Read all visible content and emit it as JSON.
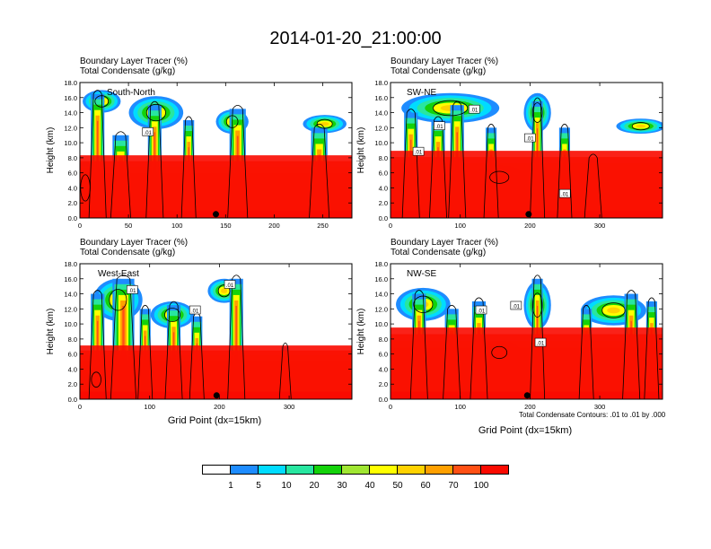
{
  "title": "2014-01-20_21:00:00",
  "colorbar": {
    "colors": [
      "#ffffff",
      "#1e8cff",
      "#00dcff",
      "#28e6a0",
      "#14d20a",
      "#a0e632",
      "#ffff00",
      "#ffd200",
      "#ffa000",
      "#ff5014",
      "#fa0a00"
    ],
    "labels": [
      "1",
      "5",
      "10",
      "20",
      "30",
      "40",
      "50",
      "60",
      "70",
      "100"
    ]
  },
  "contour_note": "Total Condensate Contours: .01 to .01 by .000",
  "xlabel": "Grid Point (dx=15km)",
  "chart_data": [
    {
      "type": "heatmap",
      "title": "South-North",
      "subtitle_line1": "Boundary Layer Tracer    (%)",
      "subtitle_line2": "Total Condensate    (g/kg)",
      "xlabel": "",
      "ylabel": "Height (km)",
      "xlim": [
        0,
        280
      ],
      "ylim": [
        0,
        18
      ],
      "xticks": [
        0,
        50,
        100,
        150,
        200,
        250
      ],
      "yticks": [
        0.0,
        2.0,
        4.0,
        6.0,
        8.0,
        10.0,
        12.0,
        14.0,
        16.0,
        18.0
      ],
      "ytick_labels": [
        "0.0",
        "2.0",
        "4.0",
        "6.0",
        "8.0",
        "10.0",
        "12.0",
        "14.0",
        "16.0",
        "18.0"
      ],
      "contour_labels": [
        {
          "x": 70,
          "y": 11.4,
          "text": ".01"
        }
      ],
      "marker": {
        "x": 140,
        "y": 0.5
      }
    },
    {
      "type": "heatmap",
      "title": "SW-NE",
      "subtitle_line1": "Boundary Layer Tracer    (%)",
      "subtitle_line2": "Total Condensate    (g/kg)",
      "xlabel": "",
      "ylabel": "Height (km)",
      "xlim": [
        0,
        390
      ],
      "ylim": [
        0,
        18
      ],
      "xticks": [
        0,
        100,
        200,
        300
      ],
      "yticks": [
        0.0,
        2.0,
        4.0,
        6.0,
        8.0,
        10.0,
        12.0,
        14.0,
        16.0,
        18.0
      ],
      "ytick_labels": [
        "0.0",
        "2.0",
        "4.0",
        "6.0",
        "8.0",
        "10.0",
        "12.0",
        "14.0",
        "16.0",
        "18.0"
      ],
      "contour_labels": [
        {
          "x": 120,
          "y": 14.4,
          "text": ".01"
        },
        {
          "x": 70,
          "y": 12.2,
          "text": ".01"
        },
        {
          "x": 40,
          "y": 8.8,
          "text": ".01"
        },
        {
          "x": 200,
          "y": 10.6,
          "text": ".01"
        },
        {
          "x": 250,
          "y": 3.2,
          "text": ".01"
        }
      ],
      "marker": {
        "x": 198,
        "y": 0.5
      }
    },
    {
      "type": "heatmap",
      "title": "West-East",
      "subtitle_line1": "Boundary Layer Tracer    (%)",
      "subtitle_line2": "Total Condensate    (g/kg)",
      "xlabel": "Grid Point (dx=15km)",
      "ylabel": "Height (km)",
      "xlim": [
        0,
        390
      ],
      "ylim": [
        0,
        18
      ],
      "xticks": [
        0,
        100,
        200,
        300
      ],
      "yticks": [
        0.0,
        2.0,
        4.0,
        6.0,
        8.0,
        10.0,
        12.0,
        14.0,
        16.0,
        18.0
      ],
      "ytick_labels": [
        "0.0",
        "2.0",
        "4.0",
        "6.0",
        "8.0",
        "10.0",
        "12.0",
        "14.0",
        "16.0",
        "18.0"
      ],
      "contour_labels": [
        {
          "x": 75,
          "y": 14.5,
          "text": ".01"
        },
        {
          "x": 165,
          "y": 11.8,
          "text": ".01"
        },
        {
          "x": 215,
          "y": 15.2,
          "text": ".01"
        }
      ],
      "marker": {
        "x": 196,
        "y": 0.5
      }
    },
    {
      "type": "heatmap",
      "title": "NW-SE",
      "subtitle_line1": "Boundary Layer Tracer    (%)",
      "subtitle_line2": "Total Condensate    (g/kg)",
      "xlabel": "Grid Point (dx=15km)",
      "ylabel": "Height (km)",
      "xlim": [
        0,
        390
      ],
      "ylim": [
        0,
        18
      ],
      "xticks": [
        0,
        100,
        200,
        300
      ],
      "yticks": [
        0.0,
        2.0,
        4.0,
        6.0,
        8.0,
        10.0,
        12.0,
        14.0,
        16.0,
        18.0
      ],
      "ytick_labels": [
        "0.0",
        "2.0",
        "4.0",
        "6.0",
        "8.0",
        "10.0",
        "12.0",
        "14.0",
        "16.0",
        "18.0"
      ],
      "contour_labels": [
        {
          "x": 130,
          "y": 11.8,
          "text": ".01"
        },
        {
          "x": 180,
          "y": 12.4,
          "text": ".01"
        },
        {
          "x": 215,
          "y": 7.5,
          "text": ".01"
        }
      ],
      "marker": {
        "x": 196,
        "y": 0.5
      }
    }
  ]
}
